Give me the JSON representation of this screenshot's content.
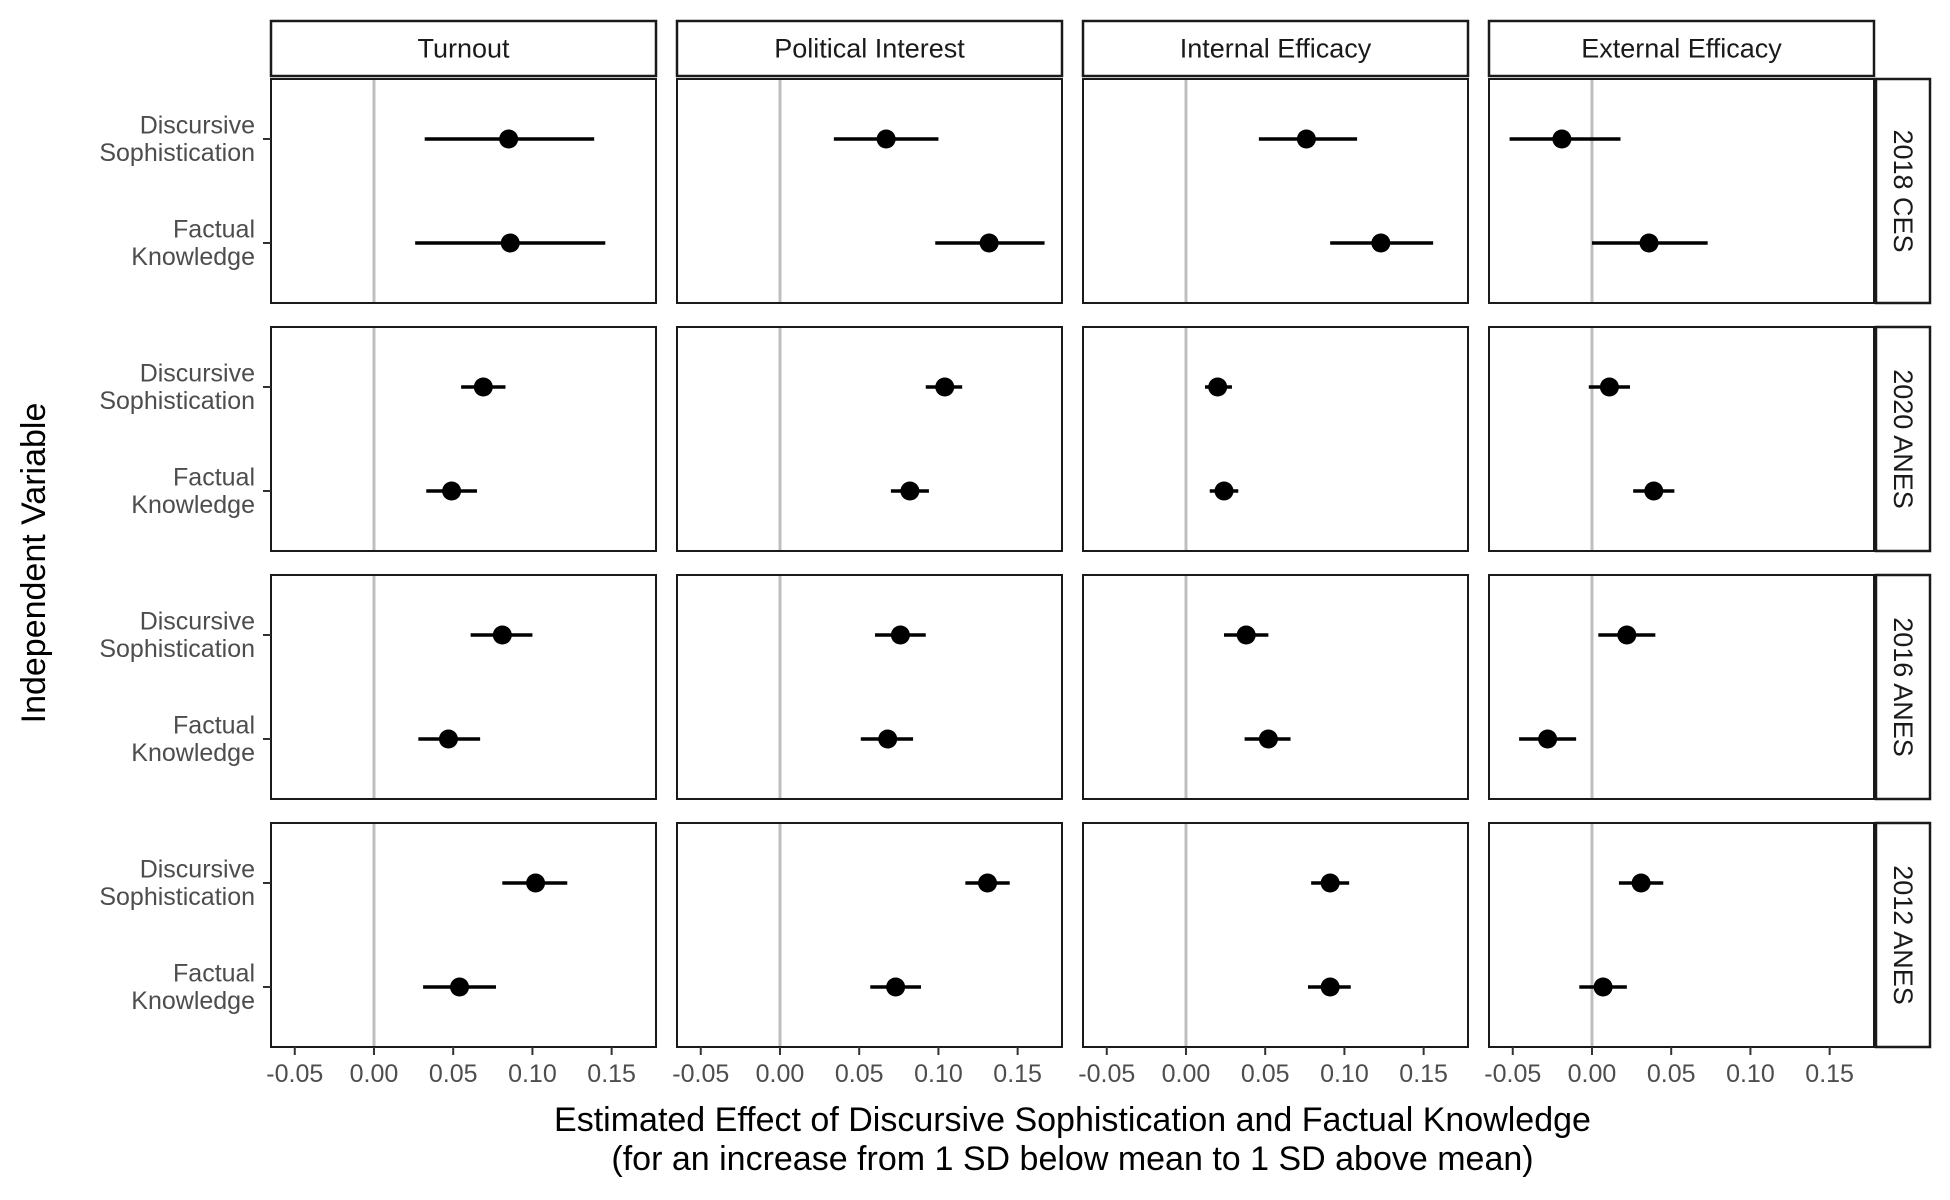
{
  "chart_data": {
    "type": "scatter",
    "subtype": "coefficient-plot-with-confidence-intervals",
    "xlabel": [
      "Estimated Effect of Discursive Sophistication and Factual Knowledge",
      "(for an increase from 1 SD below mean to 1 SD above mean)"
    ],
    "ylabel": "Independent Variable",
    "xlim": [
      -0.065,
      0.178
    ],
    "x_ticks": [
      -0.05,
      0.0,
      0.05,
      0.1,
      0.15
    ],
    "x_tick_labels": [
      "-0.05",
      "0.00",
      "0.05",
      "0.10",
      "0.15"
    ],
    "reference_line_x": 0,
    "grid": false,
    "columns": [
      "Turnout",
      "Political Interest",
      "Internal Efficacy",
      "External Efficacy"
    ],
    "rows": [
      "2018 CES",
      "2020 ANES",
      "2016 ANES",
      "2012 ANES"
    ],
    "y_categories": [
      {
        "key": "ds",
        "label": [
          "Discursive",
          "Sophistication"
        ]
      },
      {
        "key": "fk",
        "label": [
          "Factual",
          "Knowledge"
        ]
      }
    ],
    "estimates": {
      "2018 CES": {
        "Turnout": {
          "ds": [
            0.085,
            0.032,
            0.139
          ],
          "fk": [
            0.086,
            0.026,
            0.146
          ]
        },
        "Political Interest": {
          "ds": [
            0.067,
            0.034,
            0.1
          ],
          "fk": [
            0.132,
            0.098,
            0.167
          ]
        },
        "Internal Efficacy": {
          "ds": [
            0.076,
            0.046,
            0.108
          ],
          "fk": [
            0.123,
            0.091,
            0.156
          ]
        },
        "External Efficacy": {
          "ds": [
            -0.019,
            -0.052,
            0.018
          ],
          "fk": [
            0.036,
            0.0,
            0.073
          ]
        }
      },
      "2020 ANES": {
        "Turnout": {
          "ds": [
            0.069,
            0.055,
            0.083
          ],
          "fk": [
            0.049,
            0.033,
            0.065
          ]
        },
        "Political Interest": {
          "ds": [
            0.104,
            0.092,
            0.115
          ],
          "fk": [
            0.082,
            0.07,
            0.094
          ]
        },
        "Internal Efficacy": {
          "ds": [
            0.02,
            0.012,
            0.029
          ],
          "fk": [
            0.024,
            0.015,
            0.033
          ]
        },
        "External Efficacy": {
          "ds": [
            0.011,
            -0.002,
            0.024
          ],
          "fk": [
            0.039,
            0.026,
            0.052
          ]
        }
      },
      "2016 ANES": {
        "Turnout": {
          "ds": [
            0.081,
            0.061,
            0.1
          ],
          "fk": [
            0.047,
            0.028,
            0.067
          ]
        },
        "Political Interest": {
          "ds": [
            0.076,
            0.06,
            0.092
          ],
          "fk": [
            0.068,
            0.051,
            0.084
          ]
        },
        "Internal Efficacy": {
          "ds": [
            0.038,
            0.024,
            0.052
          ],
          "fk": [
            0.052,
            0.037,
            0.066
          ]
        },
        "External Efficacy": {
          "ds": [
            0.022,
            0.004,
            0.04
          ],
          "fk": [
            -0.028,
            -0.046,
            -0.01
          ]
        }
      },
      "2012 ANES": {
        "Turnout": {
          "ds": [
            0.102,
            0.081,
            0.122
          ],
          "fk": [
            0.054,
            0.031,
            0.077
          ]
        },
        "Political Interest": {
          "ds": [
            0.131,
            0.117,
            0.145
          ],
          "fk": [
            0.073,
            0.057,
            0.089
          ]
        },
        "Internal Efficacy": {
          "ds": [
            0.091,
            0.079,
            0.103
          ],
          "fk": [
            0.091,
            0.077,
            0.104
          ]
        },
        "External Efficacy": {
          "ds": [
            0.031,
            0.017,
            0.045
          ],
          "fk": [
            0.007,
            -0.008,
            0.022
          ]
        }
      }
    }
  }
}
